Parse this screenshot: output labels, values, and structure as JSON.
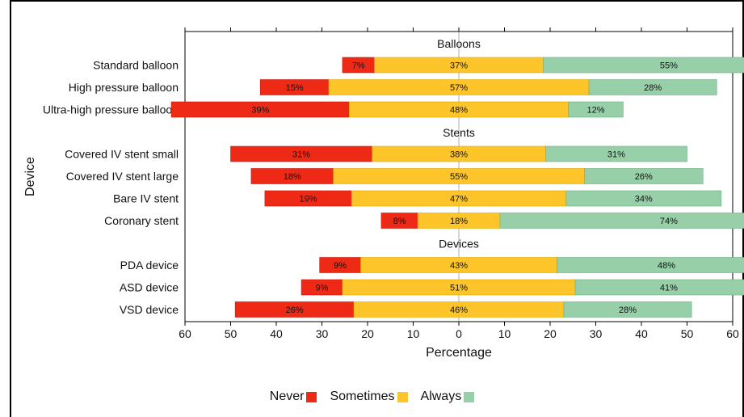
{
  "chart_data": {
    "type": "bar",
    "orientation": "horizontal-diverging",
    "xlabel": "Percentage",
    "ylabel": "Device",
    "xlim": [
      -60,
      60
    ],
    "xticks": [
      -60,
      -50,
      -40,
      -30,
      -20,
      -10,
      0,
      10,
      20,
      30,
      40,
      50,
      60
    ],
    "xtick_labels": [
      "60",
      "50",
      "40",
      "30",
      "20",
      "10",
      "0",
      "10",
      "20",
      "30",
      "40",
      "50",
      "60"
    ],
    "colors": {
      "Never": "#ee2a17",
      "Sometimes": "#fdc52a",
      "Always": "#97cfa8"
    },
    "groups": [
      {
        "title": "Balloons",
        "items": [
          {
            "label": "Standard balloon",
            "never": 7,
            "sometimes": 37,
            "always": 55
          },
          {
            "label": "High pressure balloon",
            "never": 15,
            "sometimes": 57,
            "always": 28
          },
          {
            "label": "Ultra-high pressure balloon",
            "never": 39,
            "sometimes": 48,
            "always": 12
          }
        ]
      },
      {
        "title": "Stents",
        "items": [
          {
            "label": "Covered IV stent small",
            "never": 31,
            "sometimes": 38,
            "always": 31
          },
          {
            "label": "Covered IV stent large",
            "never": 18,
            "sometimes": 55,
            "always": 26
          },
          {
            "label": "Bare IV stent",
            "never": 19,
            "sometimes": 47,
            "always": 34
          },
          {
            "label": "Coronary stent",
            "never": 8,
            "sometimes": 18,
            "always": 74
          }
        ]
      },
      {
        "title": "Devices",
        "items": [
          {
            "label": "PDA device",
            "never": 9,
            "sometimes": 43,
            "always": 48
          },
          {
            "label": "ASD device",
            "never": 9,
            "sometimes": 51,
            "always": 41
          },
          {
            "label": "VSD device",
            "never": 26,
            "sometimes": 46,
            "always": 28
          }
        ]
      }
    ],
    "legend": {
      "position": "bottom",
      "entries": [
        "Never",
        "Sometimes",
        "Always"
      ]
    }
  }
}
